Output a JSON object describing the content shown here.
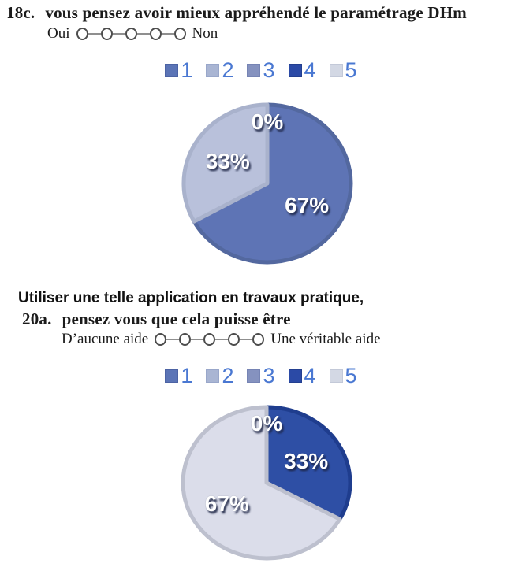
{
  "questions": [
    {
      "number": "18c.",
      "text": "vous pensez avoir mieux appréhendé le paramétrage DHm",
      "scale_left": "Oui",
      "scale_right": "Non",
      "scale_points": 5
    },
    {
      "intro": "Utiliser une telle application en travaux pratique,",
      "number": "20a.",
      "text": "pensez vous que cela puisse être",
      "scale_left": "D’aucune aide",
      "scale_right": "Une véritable aide",
      "scale_points": 5
    }
  ],
  "legend": {
    "text_color": "#4a78d2",
    "items": [
      {
        "label": "1",
        "color": "#5b74b6",
        "border": "#4c63a4"
      },
      {
        "label": "2",
        "color": "#a9b5d3",
        "border": "#99a7ca"
      },
      {
        "label": "3",
        "color": "#8592bf",
        "border": "#7684b4"
      },
      {
        "label": "4",
        "color": "#2b4aa6",
        "border": "#233f90"
      },
      {
        "label": "5",
        "color": "#d3d8e4",
        "border": "#c3c9d8"
      }
    ]
  },
  "chart_data": [
    {
      "type": "pie",
      "categories": [
        "1",
        "2",
        "3",
        "4",
        "5"
      ],
      "values": [
        67,
        33,
        0,
        0,
        0
      ],
      "percent_labels": [
        "67%",
        "33%",
        "0%",
        "0%",
        "0%"
      ],
      "colors": [
        "#5e74b5",
        "#b9c1db",
        "#8592bf",
        "#2b4aa6",
        "#d9dce9"
      ],
      "rim_colors": [
        "#53689f",
        "#a9b2cc",
        "#7684b4",
        "#233f90",
        "#c3c7d5"
      ],
      "label_color": "#ffffff",
      "start_angle_deg": 0,
      "direction": "clockwise",
      "legend_position": "top"
    },
    {
      "type": "pie",
      "categories": [
        "1",
        "2",
        "3",
        "4",
        "5"
      ],
      "values": [
        0,
        0,
        0,
        33,
        67
      ],
      "percent_labels": [
        "0%",
        "0%",
        "0%",
        "33%",
        "67%"
      ],
      "colors": [
        "#5e74b5",
        "#b9c1db",
        "#8592bf",
        "#2e4fa5",
        "#dbddea"
      ],
      "rim_colors": [
        "#53689f",
        "#a9b2cc",
        "#7684b4",
        "#1f3d8e",
        "#bdc0ce"
      ],
      "label_color": "#ffffff",
      "start_angle_deg": 0,
      "direction": "clockwise",
      "legend_position": "top"
    }
  ]
}
